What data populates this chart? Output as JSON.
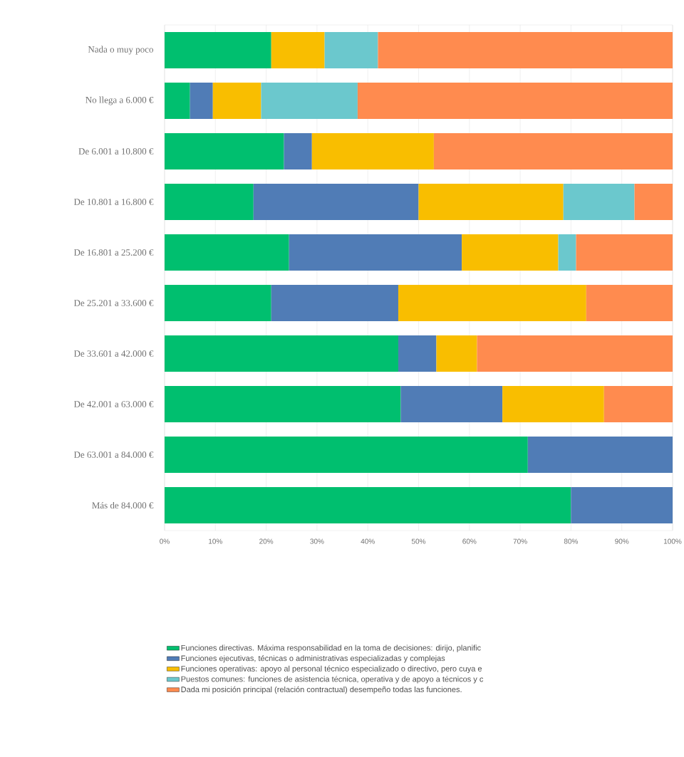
{
  "chart_data": {
    "type": "bar",
    "orientation": "horizontal",
    "stacked": true,
    "grid": "x",
    "legend": "bottom",
    "categories": [
      "Nada o muy poco",
      "No llega a 6.000 €",
      "De 6.001 a 10.800 €",
      "De 10.801 a 16.800 €",
      "De 16.801 a 25.200 €",
      "De 25.201 a 33.600 €",
      "De 33.601 a 42.000 €",
      "De 42.001 a 63.000 €",
      "De 63.001 a 84.000 €",
      "Más de 84.000 €"
    ],
    "series": [
      {
        "name": "Funciones directivas. Máxima responsabilidad en la toma de decisiones: dirijo, planific",
        "color": "#00bf6f",
        "values": [
          21,
          5,
          23.5,
          17.5,
          24.5,
          21,
          46,
          46.5,
          71.5,
          80
        ]
      },
      {
        "name": "Funciones ejecutivas, técnicas o administrativas especializadas y complejas",
        "color": "#507cb6",
        "values": [
          null,
          4.5,
          5.5,
          32.5,
          34,
          25,
          7.5,
          20,
          28.5,
          20
        ]
      },
      {
        "name": "Funciones operativas: apoyo al personal técnico especializado o directivo, pero cuya e",
        "color": "#f9be00",
        "values": [
          10.5,
          9.5,
          24,
          28.5,
          19,
          37,
          8,
          20,
          null,
          null
        ]
      },
      {
        "name": "Puestos comunes: funciones de asistencia técnica, operativa y de apoyo a técnicos y c",
        "color": "#6bc8cd",
        "values": [
          10.5,
          19,
          null,
          14,
          3.5,
          null,
          null,
          null,
          null,
          null
        ]
      },
      {
        "name": "Dada mi posición principal (relación contractual) desempeño todas las funciones.",
        "color": "#ff8b4f",
        "values": [
          58,
          62,
          47,
          7.5,
          19,
          17,
          38.5,
          13.5,
          null,
          null
        ]
      }
    ],
    "xlim": [
      0,
      100
    ],
    "xticks": [
      {
        "value": 0,
        "label": "0%"
      },
      {
        "value": 10,
        "label": "10%"
      },
      {
        "value": 20,
        "label": "20%"
      },
      {
        "value": 30,
        "label": "30%"
      },
      {
        "value": 40,
        "label": "40%"
      },
      {
        "value": 50,
        "label": "50%"
      },
      {
        "value": 60,
        "label": "60%"
      },
      {
        "value": 70,
        "label": "70%"
      },
      {
        "value": 80,
        "label": "80%"
      },
      {
        "value": 90,
        "label": "90%"
      },
      {
        "value": 100,
        "label": "100%"
      }
    ]
  }
}
